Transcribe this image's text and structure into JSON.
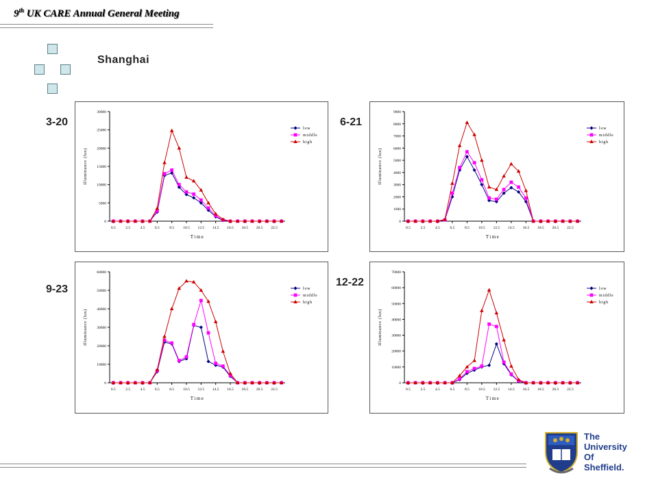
{
  "header": {
    "title_num": "9",
    "title_sup": "th",
    "title_rest": "UK CARE Annual General Meeting"
  },
  "city": "Shanghai",
  "dates": [
    "3-20",
    "6-21",
    "9-23",
    "12-22"
  ],
  "logo": {
    "line1": "The",
    "line2": "University",
    "line3": "Of",
    "line4": "Sheffield."
  },
  "colors": {
    "low": "#00007f",
    "middle": "#ff00ff",
    "high": "#cc0000"
  },
  "chart_data": [
    {
      "type": "line",
      "title": "3-20",
      "xlabel": "Time",
      "ylabel": "Illuminance (lux)",
      "x_ticks": [
        "0.5",
        "2.5",
        "4.5",
        "6.5",
        "8.5",
        "10.5",
        "12.5",
        "14.5",
        "16.5",
        "18.5",
        "20.5",
        "22.5"
      ],
      "x": [
        0.5,
        1.5,
        2.5,
        3.5,
        4.5,
        5.5,
        6.5,
        7.5,
        8.5,
        9.5,
        10.5,
        11.5,
        12.5,
        13.5,
        14.5,
        15.5,
        16.5,
        17.5,
        18.5,
        19.5,
        20.5,
        21.5,
        22.5,
        23.5
      ],
      "ylim": [
        0,
        30000
      ],
      "y_ticks": [
        0,
        5000,
        10000,
        15000,
        20000,
        25000,
        30000
      ],
      "legend_position": "right",
      "series": [
        {
          "name": "low",
          "values": [
            0,
            0,
            0,
            0,
            0,
            0,
            2500,
            12500,
            13200,
            9300,
            7300,
            6400,
            5000,
            3000,
            1200,
            200,
            0,
            0,
            0,
            0,
            0,
            0,
            0,
            0
          ]
        },
        {
          "name": "middle",
          "values": [
            0,
            0,
            0,
            0,
            0,
            0,
            2800,
            13000,
            14000,
            10000,
            8000,
            7400,
            5800,
            3600,
            1500,
            300,
            0,
            0,
            0,
            0,
            0,
            0,
            0,
            0
          ]
        },
        {
          "name": "high",
          "values": [
            0,
            0,
            0,
            0,
            0,
            0,
            3500,
            16000,
            24800,
            20000,
            12000,
            11000,
            8500,
            5000,
            2000,
            500,
            0,
            0,
            0,
            0,
            0,
            0,
            0,
            0
          ]
        }
      ]
    },
    {
      "type": "line",
      "title": "6-21",
      "xlabel": "Time",
      "ylabel": "Illuminance (lux)",
      "x_ticks": [
        "0.5",
        "2.5",
        "4.5",
        "6.5",
        "8.5",
        "10.5",
        "12.5",
        "14.5",
        "16.5",
        "18.5",
        "20.5",
        "22.5"
      ],
      "x": [
        0.5,
        1.5,
        2.5,
        3.5,
        4.5,
        5.5,
        6.5,
        7.5,
        8.5,
        9.5,
        10.5,
        11.5,
        12.5,
        13.5,
        14.5,
        15.5,
        16.5,
        17.5,
        18.5,
        19.5,
        20.5,
        21.5,
        22.5,
        23.5
      ],
      "ylim": [
        0,
        9000
      ],
      "y_ticks": [
        0,
        1000,
        2000,
        3000,
        4000,
        5000,
        6000,
        7000,
        8000,
        9000
      ],
      "legend_position": "right",
      "series": [
        {
          "name": "low",
          "values": [
            0,
            0,
            0,
            0,
            0,
            100,
            2000,
            4200,
            5300,
            4200,
            3000,
            1700,
            1600,
            2300,
            2750,
            2400,
            1600,
            0,
            0,
            0,
            0,
            0,
            0,
            0
          ]
        },
        {
          "name": "middle",
          "values": [
            0,
            0,
            0,
            0,
            0,
            100,
            2300,
            4400,
            5700,
            4800,
            3400,
            1900,
            1800,
            2600,
            3200,
            2800,
            1900,
            0,
            0,
            0,
            0,
            0,
            0,
            0
          ]
        },
        {
          "name": "high",
          "values": [
            0,
            0,
            0,
            0,
            0,
            150,
            3100,
            6200,
            8100,
            7100,
            5000,
            2800,
            2600,
            3700,
            4700,
            4100,
            2500,
            0,
            0,
            0,
            0,
            0,
            0,
            0
          ]
        }
      ]
    },
    {
      "type": "line",
      "title": "9-23",
      "xlabel": "Time",
      "ylabel": "Illuminance (lux)",
      "x_ticks": [
        "0.5",
        "2.5",
        "4.5",
        "6.5",
        "8.5",
        "10.5",
        "12.5",
        "14.5",
        "16.5",
        "18.5",
        "20.5",
        "22.5"
      ],
      "x": [
        0.5,
        1.5,
        2.5,
        3.5,
        4.5,
        5.5,
        6.5,
        7.5,
        8.5,
        9.5,
        10.5,
        11.5,
        12.5,
        13.5,
        14.5,
        15.5,
        16.5,
        17.5,
        18.5,
        19.5,
        20.5,
        21.5,
        22.5,
        23.5
      ],
      "ylim": [
        0,
        60000
      ],
      "y_ticks": [
        0,
        10000,
        20000,
        30000,
        40000,
        50000,
        60000
      ],
      "legend_position": "right",
      "series": [
        {
          "name": "low",
          "values": [
            0,
            0,
            0,
            0,
            0,
            0,
            6000,
            22000,
            21000,
            11500,
            13000,
            31000,
            30000,
            11500,
            9500,
            8500,
            3500,
            0,
            0,
            0,
            0,
            0,
            0,
            0
          ]
        },
        {
          "name": "middle",
          "values": [
            0,
            0,
            0,
            0,
            0,
            0,
            6500,
            23000,
            21500,
            12000,
            14000,
            31500,
            44500,
            27000,
            10500,
            9000,
            4000,
            0,
            0,
            0,
            0,
            0,
            0,
            0
          ]
        },
        {
          "name": "high",
          "values": [
            0,
            0,
            0,
            0,
            0,
            0,
            7000,
            25000,
            40000,
            51000,
            55000,
            54500,
            50000,
            44000,
            33000,
            17000,
            5000,
            0,
            0,
            0,
            0,
            0,
            0,
            0
          ]
        }
      ]
    },
    {
      "type": "line",
      "title": "12-22",
      "xlabel": "Time",
      "ylabel": "Illuminance (lux)",
      "x_ticks": [
        "0.5",
        "2.5",
        "4.5",
        "6.5",
        "8.5",
        "10.5",
        "12.5",
        "14.5",
        "16.5",
        "18.5",
        "20.5",
        "22.5"
      ],
      "x": [
        0.5,
        1.5,
        2.5,
        3.5,
        4.5,
        5.5,
        6.5,
        7.5,
        8.5,
        9.5,
        10.5,
        11.5,
        12.5,
        13.5,
        14.5,
        15.5,
        16.5,
        17.5,
        18.5,
        19.5,
        20.5,
        21.5,
        22.5,
        23.5
      ],
      "ylim": [
        0,
        70000
      ],
      "y_ticks": [
        0,
        10000,
        20000,
        30000,
        40000,
        50000,
        60000,
        70000
      ],
      "legend_position": "right",
      "series": [
        {
          "name": "low",
          "values": [
            0,
            0,
            0,
            0,
            0,
            0,
            0,
            2000,
            6000,
            8000,
            10000,
            11000,
            24500,
            12000,
            5000,
            1000,
            0,
            0,
            0,
            0,
            0,
            0,
            0,
            0
          ]
        },
        {
          "name": "middle",
          "values": [
            0,
            0,
            0,
            0,
            0,
            0,
            0,
            2500,
            7000,
            9000,
            10500,
            37000,
            35500,
            13000,
            5500,
            1200,
            0,
            0,
            0,
            0,
            0,
            0,
            0,
            0
          ]
        },
        {
          "name": "high",
          "values": [
            0,
            0,
            0,
            0,
            0,
            0,
            0,
            4500,
            10000,
            14000,
            45500,
            58500,
            44000,
            27000,
            10500,
            2000,
            0,
            0,
            0,
            0,
            0,
            0,
            0,
            0
          ]
        }
      ]
    }
  ]
}
